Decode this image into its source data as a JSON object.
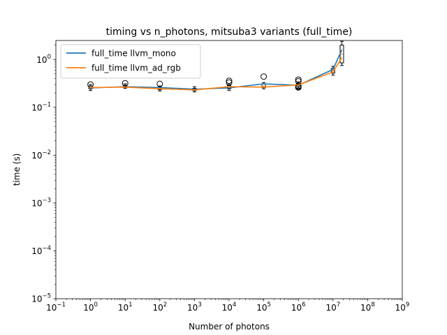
{
  "chart_data": {
    "type": "line",
    "title": "timing vs n_photons, mitsuba3 variants (full_time)",
    "xlabel": "Number of photons",
    "ylabel": "time (s)",
    "xscale": "log",
    "yscale": "log",
    "xlim": [
      0.1,
      1000000000
    ],
    "ylim": [
      1e-05,
      2.5
    ],
    "xticks": [
      {
        "value": 0.1,
        "base": "10",
        "exp": "−1"
      },
      {
        "value": 1,
        "base": "10",
        "exp": "0"
      },
      {
        "value": 10,
        "base": "10",
        "exp": "1"
      },
      {
        "value": 100,
        "base": "10",
        "exp": "2"
      },
      {
        "value": 1000,
        "base": "10",
        "exp": "3"
      },
      {
        "value": 10000,
        "base": "10",
        "exp": "4"
      },
      {
        "value": 100000,
        "base": "10",
        "exp": "5"
      },
      {
        "value": 1000000,
        "base": "10",
        "exp": "6"
      },
      {
        "value": 10000000,
        "base": "10",
        "exp": "7"
      },
      {
        "value": 100000000,
        "base": "10",
        "exp": "8"
      },
      {
        "value": 1000000000,
        "base": "10",
        "exp": "9"
      }
    ],
    "yticks": [
      {
        "value": 1e-05,
        "base": "10",
        "exp": "−5"
      },
      {
        "value": 0.0001,
        "base": "10",
        "exp": "−4"
      },
      {
        "value": 0.001,
        "base": "10",
        "exp": "−3"
      },
      {
        "value": 0.01,
        "base": "10",
        "exp": "−2"
      },
      {
        "value": 0.1,
        "base": "10",
        "exp": "−1"
      },
      {
        "value": 1,
        "base": "10",
        "exp": "0"
      }
    ],
    "legend_position": "top-left",
    "x": [
      1,
      10,
      100,
      1000,
      10000,
      100000,
      1000000,
      10000000,
      18000000
    ],
    "series": [
      {
        "name": "full_time llvm_mono",
        "color": "#1f77b4",
        "values": [
          0.255,
          0.27,
          0.26,
          0.24,
          0.255,
          0.31,
          0.29,
          0.62,
          1.6
        ]
      },
      {
        "name": "full_time llvm_ad_rgb",
        "color": "#ff7f0e",
        "values": [
          0.26,
          0.265,
          0.245,
          0.232,
          0.27,
          0.265,
          0.295,
          0.55,
          1.1
        ]
      }
    ],
    "boxes": [
      {
        "x": 1,
        "q1": 0.245,
        "median": 0.26,
        "q3": 0.28,
        "whisker_low": 0.225,
        "whisker_high": 0.3,
        "outliers": [
          0.3
        ]
      },
      {
        "x": 10,
        "q1": 0.26,
        "median": 0.27,
        "q3": 0.29,
        "whisker_low": 0.25,
        "whisker_high": 0.31,
        "outliers": [
          0.32
        ]
      },
      {
        "x": 100,
        "q1": 0.235,
        "median": 0.25,
        "q3": 0.265,
        "whisker_low": 0.22,
        "whisker_high": 0.28,
        "outliers": [
          0.31
        ]
      },
      {
        "x": 1000,
        "q1": 0.225,
        "median": 0.237,
        "q3": 0.25,
        "whisker_low": 0.21,
        "whisker_high": 0.27,
        "outliers": []
      },
      {
        "x": 10000,
        "q1": 0.245,
        "median": 0.262,
        "q3": 0.285,
        "whisker_low": 0.225,
        "whisker_high": 0.3,
        "outliers": [
          0.33,
          0.36
        ]
      },
      {
        "x": 100000,
        "q1": 0.26,
        "median": 0.28,
        "q3": 0.31,
        "whisker_low": 0.245,
        "whisker_high": 0.33,
        "outliers": [
          0.44
        ]
      },
      {
        "x": 1000000,
        "q1": 0.275,
        "median": 0.292,
        "q3": 0.32,
        "whisker_low": 0.255,
        "whisker_high": 0.34,
        "outliers": [
          0.26,
          0.27,
          0.28,
          0.35,
          0.38
        ]
      },
      {
        "x": 10000000,
        "q1": 0.52,
        "median": 0.58,
        "q3": 0.65,
        "whisker_low": 0.47,
        "whisker_high": 0.72,
        "outliers": []
      },
      {
        "x": 18000000,
        "q1": 0.85,
        "median": 1.3,
        "q3": 2.0,
        "whisker_low": 0.75,
        "whisker_high": 2.4,
        "outliers": []
      }
    ]
  }
}
